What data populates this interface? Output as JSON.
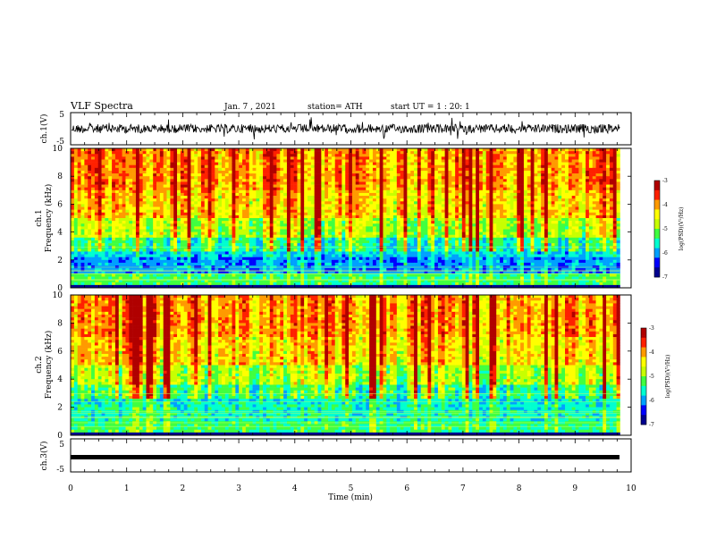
{
  "header": {
    "title": "VLF Spectra",
    "date": "Jan. 7 , 2021",
    "station": "station= ATH",
    "start": "start UT =  1 : 20: 1"
  },
  "chart_data": [
    {
      "type": "line",
      "ylabel": "ch.1(V)",
      "xlim": [
        0,
        10
      ],
      "ylim": [
        -5,
        5
      ],
      "yticks": [
        "5",
        "-5"
      ],
      "series": [
        {
          "values_description_free": true,
          "mean": 0,
          "amplitude": 1.5
        }
      ]
    },
    {
      "type": "heatmap",
      "ylabel": "ch.1\nFrequency (kHz)",
      "ylabel_parts": [
        "ch.1",
        "Frequency (kHz)"
      ],
      "xlim": [
        0,
        10
      ],
      "ylim": [
        0,
        10
      ],
      "yticks": [
        "0",
        "2",
        "4",
        "6",
        "8",
        "10"
      ],
      "colorbar": {
        "label": "log(PSD)(V²/Hz)",
        "ticks": [
          "-3",
          "-4",
          "-5",
          "-6",
          "-7"
        ],
        "range": [
          -7,
          -3
        ]
      }
    },
    {
      "type": "heatmap",
      "ylabel_parts": [
        "ch.2",
        "Frequency (kHz)"
      ],
      "xlim": [
        0,
        10
      ],
      "ylim": [
        0,
        10
      ],
      "yticks": [
        "0",
        "2",
        "4",
        "6",
        "8",
        "10"
      ],
      "colorbar": {
        "label": "log(PSD)(V²/Hz)",
        "ticks": [
          "-3",
          "-4",
          "-5",
          "-6",
          "-7"
        ],
        "range": [
          -7,
          -3
        ]
      }
    },
    {
      "type": "line",
      "ylabel": "ch.3(V)",
      "xlim": [
        0,
        10
      ],
      "ylim": [
        -5,
        5
      ],
      "yticks": [
        "5",
        "-5"
      ],
      "xlabel": "Time  (min)",
      "xticks": [
        "0",
        "1",
        "2",
        "3",
        "4",
        "5",
        "6",
        "7",
        "8",
        "9",
        "10"
      ]
    }
  ],
  "colors": {
    "colormap": [
      "#00008f",
      "#0000ff",
      "#00a0ff",
      "#00ffd0",
      "#40ff40",
      "#c8ff00",
      "#ffff00",
      "#ff9a00",
      "#ff2000",
      "#b00000"
    ]
  }
}
